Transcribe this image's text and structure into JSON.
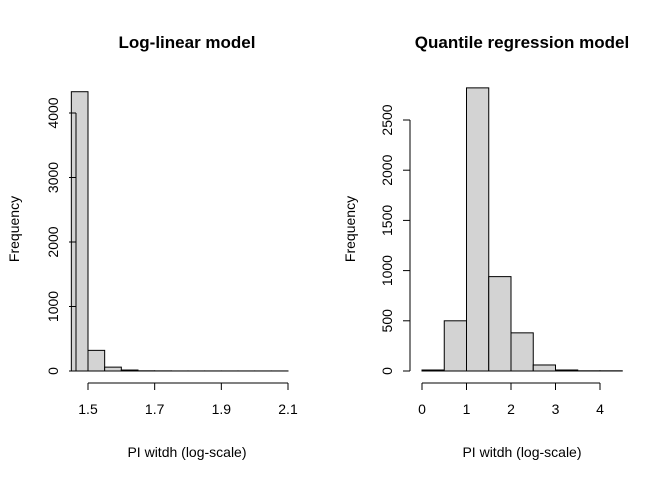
{
  "chart_data": [
    {
      "type": "bar",
      "subtype": "histogram",
      "title": "Log-linear model",
      "xlabel": "PI witdh (log-scale)",
      "ylabel": "Frequency",
      "xlim": [
        1.5,
        2.1
      ],
      "ylim": [
        0,
        4300
      ],
      "x_ticks": [
        "1.5",
        "1.7",
        "1.9",
        "2.1"
      ],
      "y_ticks": [
        "0",
        "1000",
        "2000",
        "3000",
        "4000"
      ],
      "bin_edges": [
        1.45,
        1.5,
        1.55,
        1.6,
        1.65,
        1.7,
        1.75,
        1.8,
        1.85,
        1.9,
        1.95,
        2.0,
        2.05,
        2.1
      ],
      "values": [
        4330,
        320,
        60,
        15,
        3,
        2,
        1,
        1,
        1,
        1,
        1,
        1,
        1
      ]
    },
    {
      "type": "bar",
      "subtype": "histogram",
      "title": "Quantile regression model",
      "xlabel": "PI witdh (log-scale)",
      "ylabel": "Frequency",
      "xlim": [
        0,
        4
      ],
      "ylim": [
        0,
        2800
      ],
      "x_ticks": [
        "0",
        "1",
        "2",
        "3",
        "4"
      ],
      "y_ticks": [
        "0",
        "500",
        "1000",
        "1500",
        "2000",
        "2500"
      ],
      "bin_edges": [
        0,
        0.5,
        1.0,
        1.5,
        2.0,
        2.5,
        3.0,
        3.5,
        4.0,
        4.5
      ],
      "values": [
        10,
        500,
        2820,
        940,
        380,
        60,
        10,
        2,
        2
      ]
    }
  ]
}
